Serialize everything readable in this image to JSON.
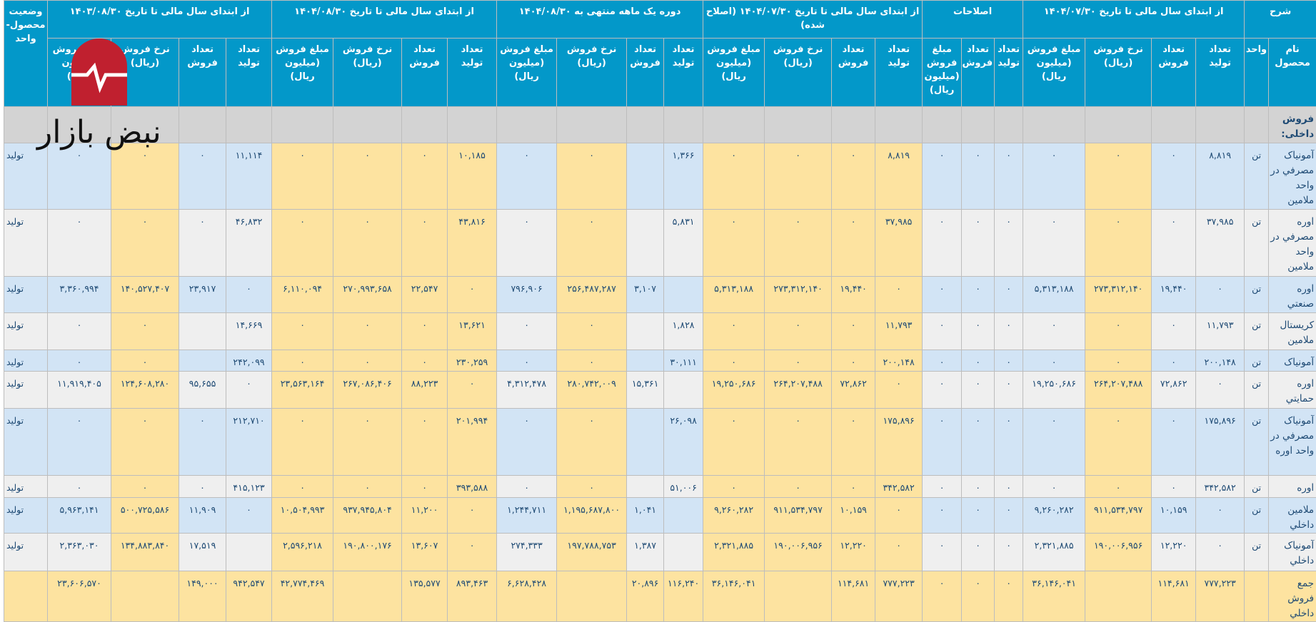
{
  "header": {
    "description": "شرح",
    "product_name": "نام محصول",
    "unit": "واحد",
    "status": "وضعیت محصول-واحد",
    "groups": [
      {
        "title": "از ابتدای سال مالی تا تاریخ ۱۴۰۴/۰۷/۳۰",
        "cols": [
          "تعداد تولید",
          "تعداد فروش",
          "نرخ فروش (ریال)",
          "مبلغ فروش (میلیون ریال)"
        ]
      },
      {
        "title": "اصلاحات",
        "cols": [
          "تعداد تولید",
          "تعداد فروش",
          "مبلغ فروش (میلیون ریال)"
        ]
      },
      {
        "title": "از ابتدای سال مالی تا تاریخ ۱۴۰۴/۰۷/۳۰ (اصلاح شده)",
        "cols": [
          "تعداد تولید",
          "تعداد فروش",
          "نرخ فروش (ریال)",
          "مبلغ فروش (میلیون ریال)"
        ]
      },
      {
        "title": "دوره یک ماهه منتهی به ۱۴۰۴/۰۸/۳۰",
        "cols": [
          "تعداد تولید",
          "تعداد فروش",
          "نرخ فروش (ریال)",
          "مبلغ فروش (میلیون ریال)"
        ]
      },
      {
        "title": "از ابتدای سال مالی تا تاریخ ۱۴۰۴/۰۸/۳۰",
        "cols": [
          "تعداد تولید",
          "تعداد فروش",
          "نرخ فروش (ریال)",
          "مبلغ فروش (میلیون ریال)"
        ]
      },
      {
        "title": "از ابتدای سال مالی تا تاریخ ۱۴۰۳/۰۸/۳۰",
        "cols": [
          "تعداد تولید",
          "تعداد فروش",
          "نرخ فروش (ریال)",
          "مبلغ فروش (میلیون ریال)"
        ]
      }
    ]
  },
  "section_label": "فروش داخلی:",
  "rows": [
    {
      "name": "آمونیاک مصرفي در واحد ملامين",
      "unit": "تن",
      "values": [
        "۸,۸۱۹",
        "۰",
        "۰",
        "۰",
        "۰",
        "۰",
        "۰",
        "۸,۸۱۹",
        "۰",
        "۰",
        "۰",
        "۱,۳۶۶",
        "",
        "۰",
        "۰",
        "۱۰,۱۸۵",
        "۰",
        "۰",
        "۰",
        "۱۱,۱۱۴",
        "۰",
        "۰",
        "۰"
      ],
      "status": "تولید"
    },
    {
      "name": "اوره مصرفي در واحد ملامين",
      "unit": "تن",
      "values": [
        "۳۷,۹۸۵",
        "۰",
        "۰",
        "۰",
        "۰",
        "۰",
        "۰",
        "۳۷,۹۸۵",
        "۰",
        "۰",
        "۰",
        "۵,۸۳۱",
        "",
        "۰",
        "۰",
        "۴۳,۸۱۶",
        "۰",
        "۰",
        "۰",
        "۴۶,۸۳۲",
        "۰",
        "۰",
        "۰"
      ],
      "status": "تولید"
    },
    {
      "name": "اوره صنعتي",
      "unit": "تن",
      "values": [
        "۰",
        "۱۹,۴۴۰",
        "۲۷۳,۳۱۲,۱۴۰",
        "۵,۳۱۳,۱۸۸",
        "۰",
        "۰",
        "۰",
        "۰",
        "۱۹,۴۴۰",
        "۲۷۳,۳۱۲,۱۴۰",
        "۵,۳۱۳,۱۸۸",
        "",
        "۳,۱۰۷",
        "۲۵۶,۴۸۷,۲۸۷",
        "۷۹۶,۹۰۶",
        "۰",
        "۲۲,۵۴۷",
        "۲۷۰,۹۹۳,۶۵۸",
        "۶,۱۱۰,۰۹۴",
        "۰",
        "۲۳,۹۱۷",
        "۱۴۰,۵۲۷,۴۰۷",
        "۳,۳۶۰,۹۹۴"
      ],
      "status": "تولید"
    },
    {
      "name": "کریستال ملامين",
      "unit": "تن",
      "values": [
        "۱۱,۷۹۳",
        "۰",
        "۰",
        "۰",
        "۰",
        "۰",
        "۰",
        "۱۱,۷۹۳",
        "۰",
        "۰",
        "۰",
        "۱,۸۲۸",
        "",
        "۰",
        "۰",
        "۱۳,۶۲۱",
        "۰",
        "۰",
        "۰",
        "۱۴,۶۶۹",
        "",
        "۰",
        "۰"
      ],
      "status": "تولید"
    },
    {
      "name": "آمونیاک",
      "unit": "تن",
      "values": [
        "۲۰۰,۱۴۸",
        "۰",
        "۰",
        "۰",
        "۰",
        "۰",
        "۰",
        "۲۰۰,۱۴۸",
        "۰",
        "۰",
        "۰",
        "۳۰,۱۱۱",
        "",
        "۰",
        "۰",
        "۲۳۰,۲۵۹",
        "۰",
        "۰",
        "۰",
        "۲۴۲,۰۹۹",
        "",
        "۰",
        "۰"
      ],
      "status": "تولید"
    },
    {
      "name": "اوره حمايتي",
      "unit": "تن",
      "values": [
        "۰",
        "۷۲,۸۶۲",
        "۲۶۴,۲۰۷,۴۸۸",
        "۱۹,۲۵۰,۶۸۶",
        "۰",
        "۰",
        "۰",
        "۰",
        "۷۲,۸۶۲",
        "۲۶۴,۲۰۷,۴۸۸",
        "۱۹,۲۵۰,۶۸۶",
        "",
        "۱۵,۳۶۱",
        "۲۸۰,۷۴۲,۰۰۹",
        "۴,۳۱۲,۴۷۸",
        "۰",
        "۸۸,۲۲۳",
        "۲۶۷,۰۸۶,۴۰۶",
        "۲۳,۵۶۳,۱۶۴",
        "۰",
        "۹۵,۶۵۵",
        "۱۲۴,۶۰۸,۲۸۰",
        "۱۱,۹۱۹,۴۰۵"
      ],
      "status": "تولید"
    },
    {
      "name": "آمونیاک مصرفي در واحد اوره",
      "unit": "تن",
      "values": [
        "۱۷۵,۸۹۶",
        "۰",
        "۰",
        "۰",
        "۰",
        "۰",
        "۰",
        "۱۷۵,۸۹۶",
        "۰",
        "۰",
        "۰",
        "۲۶,۰۹۸",
        "",
        "۰",
        "۰",
        "۲۰۱,۹۹۴",
        "۰",
        "۰",
        "۰",
        "۲۱۲,۷۱۰",
        "۰",
        "۰",
        "۰"
      ],
      "status": "تولید"
    },
    {
      "name": "اوره",
      "unit": "تن",
      "values": [
        "۳۴۲,۵۸۲",
        "۰",
        "۰",
        "۰",
        "۰",
        "۰",
        "۰",
        "۳۴۲,۵۸۲",
        "۰",
        "۰",
        "۰",
        "۵۱,۰۰۶",
        "",
        "۰",
        "۰",
        "۳۹۳,۵۸۸",
        "۰",
        "۰",
        "۰",
        "۴۱۵,۱۲۳",
        "۰",
        "۰",
        "۰"
      ],
      "status": "تولید"
    },
    {
      "name": "ملامين داخلي",
      "unit": "تن",
      "values": [
        "۰",
        "۱۰,۱۵۹",
        "۹۱۱,۵۳۴,۷۹۷",
        "۹,۲۶۰,۲۸۲",
        "۰",
        "۰",
        "۰",
        "۰",
        "۱۰,۱۵۹",
        "۹۱۱,۵۳۴,۷۹۷",
        "۹,۲۶۰,۲۸۲",
        "",
        "۱,۰۴۱",
        "۱,۱۹۵,۶۸۷,۸۰۰",
        "۱,۲۴۴,۷۱۱",
        "۰",
        "۱۱,۲۰۰",
        "۹۳۷,۹۴۵,۸۰۴",
        "۱۰,۵۰۴,۹۹۳",
        "۰",
        "۱۱,۹۰۹",
        "۵۰۰,۷۲۵,۵۸۶",
        "۵,۹۶۳,۱۴۱"
      ],
      "status": "تولید"
    },
    {
      "name": "آمونیاک داخلي",
      "unit": "تن",
      "values": [
        "۰",
        "۱۲,۲۲۰",
        "۱۹۰,۰۰۶,۹۵۶",
        "۲,۳۲۱,۸۸۵",
        "۰",
        "۰",
        "۰",
        "۰",
        "۱۲,۲۲۰",
        "۱۹۰,۰۰۶,۹۵۶",
        "۲,۳۲۱,۸۸۵",
        "",
        "۱,۳۸۷",
        "۱۹۷,۷۸۸,۷۵۳",
        "۲۷۴,۳۳۳",
        "۰",
        "۱۳,۶۰۷",
        "۱۹۰,۸۰۰,۱۷۶",
        "۲,۵۹۶,۲۱۸",
        "",
        "۱۷,۵۱۹",
        "۱۳۴,۸۸۳,۸۴۰",
        "۲,۳۶۳,۰۳۰"
      ],
      "status": "تولید"
    }
  ],
  "total": {
    "name": "جمع فروش داخلي",
    "unit": "",
    "values": [
      "۷۷۷,۲۲۳",
      "۱۱۴,۶۸۱",
      "",
      "۳۶,۱۴۶,۰۴۱",
      "۰",
      "۰",
      "۰",
      "۷۷۷,۲۲۳",
      "۱۱۴,۶۸۱",
      "",
      "۳۶,۱۴۶,۰۴۱",
      "۱۱۶,۲۴۰",
      "۲۰,۸۹۶",
      "",
      "۶,۶۲۸,۴۲۸",
      "۸۹۳,۴۶۳",
      "۱۳۵,۵۷۷",
      "",
      "۴۲,۷۷۴,۴۶۹",
      "۹۴۲,۵۴۷",
      "۱۴۹,۰۰۰",
      "",
      "۲۳,۶۰۶,۵۷۰"
    ],
    "status": ""
  },
  "watermark": {
    "text": "نبض بازار",
    "logo_color": "#c0202f"
  },
  "colors": {
    "header": "#0398c9",
    "row_blue": "#d2e4f5",
    "row_gray": "#efefef",
    "highlight": "#fde3a0",
    "section": "#d3d3d3",
    "text": "#1e4a74"
  }
}
